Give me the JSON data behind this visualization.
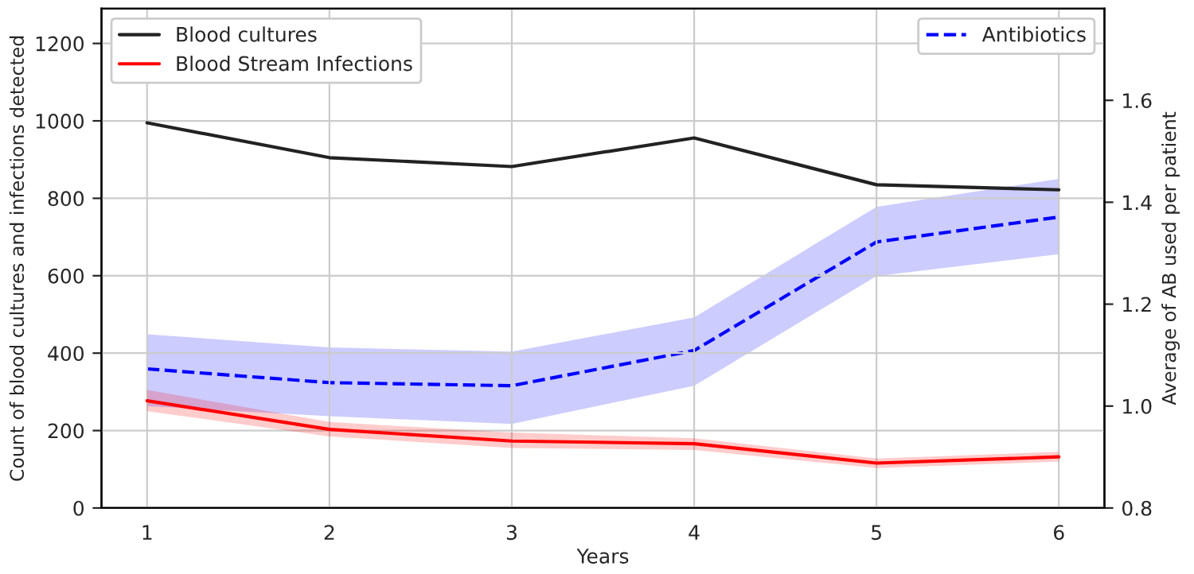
{
  "chart_data": {
    "type": "line",
    "xlabel": "Years",
    "ylabel": "Count of blood cultures and infections detected",
    "y2label": "Average of AB used per patient",
    "x": [
      1,
      2,
      3,
      4,
      5,
      6
    ],
    "series": [
      {
        "name": "Blood cultures",
        "color": "#222222",
        "line_style": "solid",
        "values": [
          995,
          905,
          882,
          956,
          835,
          822
        ]
      },
      {
        "name": "Blood Stream Infections",
        "color": "#ff0000",
        "line_style": "solid",
        "values": [
          277,
          203,
          173,
          166,
          116,
          132
        ],
        "lower": [
          250,
          185,
          155,
          150,
          103,
          120
        ],
        "upper": [
          305,
          222,
          195,
          180,
          128,
          145
        ]
      },
      {
        "name": "Antibiotics",
        "color": "#0000ff",
        "line_style": "dashed",
        "axis": "y2",
        "values": [
          1.073,
          1.046,
          1.04,
          1.109,
          1.322,
          1.371
        ],
        "lower": [
          1.0,
          0.98,
          0.965,
          1.04,
          1.255,
          1.298
        ],
        "upper": [
          1.141,
          1.115,
          1.107,
          1.174,
          1.391,
          1.446
        ]
      }
    ],
    "xlim": [
      0.75,
      6.25
    ],
    "xticks": [
      1,
      2,
      3,
      4,
      5,
      6
    ],
    "ylim": [
      0,
      1290
    ],
    "yticks": [
      0,
      200,
      400,
      600,
      800,
      1000,
      1200
    ],
    "y2lim": [
      0.8,
      1.78
    ],
    "y2ticks": [
      0.8,
      {
        "value": 1.0,
        "label": "1.0"
      },
      1.2,
      1.4,
      1.6
    ],
    "grid": true,
    "legend": [
      "top left",
      "top right"
    ]
  }
}
